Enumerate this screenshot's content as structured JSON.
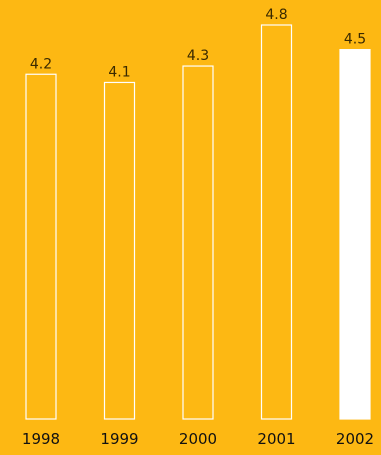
{
  "colors": {
    "background": "#FDB813",
    "bar_outline": "#FFFFFF",
    "bar_highlight_fill": "#FFFFFF",
    "value_text": "#3a2a00",
    "category_text": "#111111"
  },
  "chart_data": {
    "type": "bar",
    "title": "",
    "xlabel": "",
    "ylabel": "",
    "categories": [
      "1998",
      "1999",
      "2000",
      "2001",
      "2002"
    ],
    "values": [
      4.2,
      4.1,
      4.3,
      4.8,
      4.5
    ],
    "value_labels": [
      "4.2",
      "4.1",
      "4.3",
      "4.8",
      "4.5"
    ],
    "highlighted": [
      false,
      false,
      false,
      false,
      true
    ],
    "ylim": [
      0,
      4.8
    ],
    "grid": false,
    "legend": "none"
  }
}
